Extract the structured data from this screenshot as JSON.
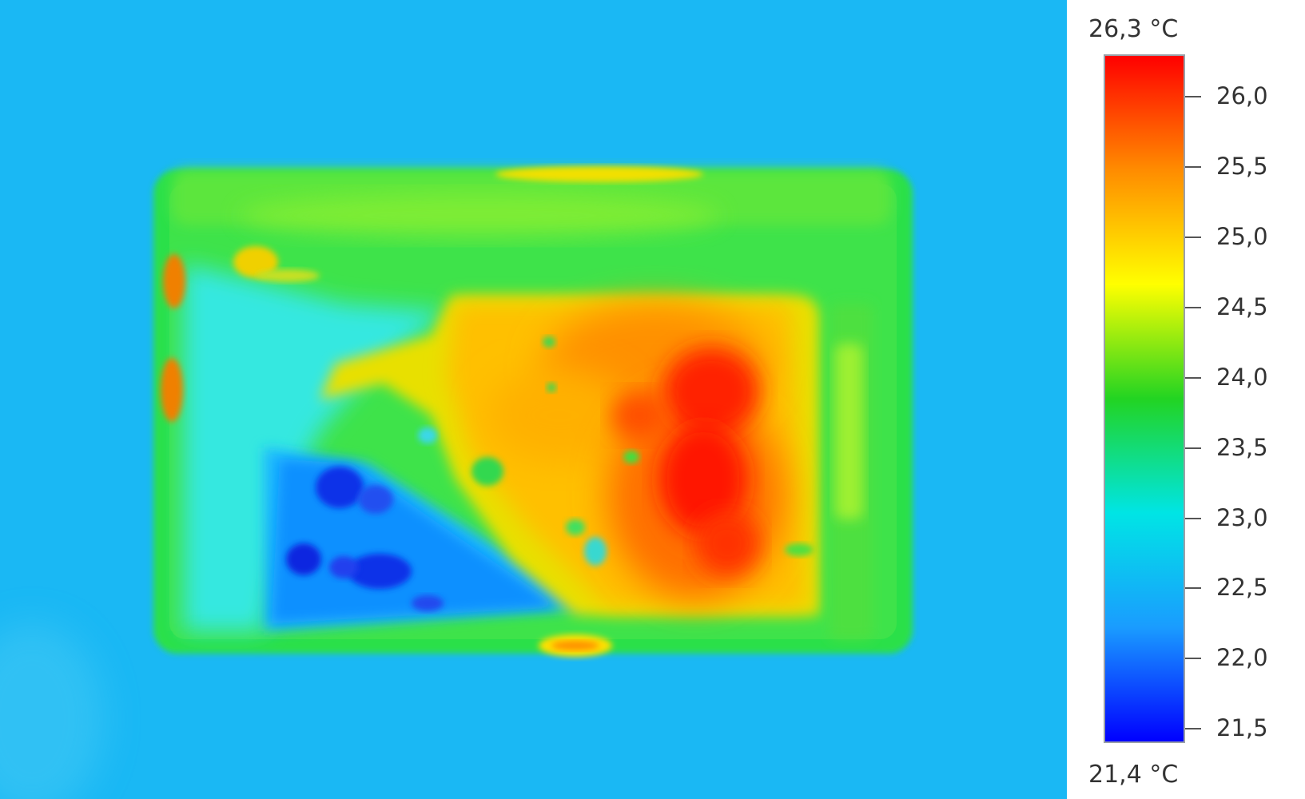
{
  "legend": {
    "max_label": "26,3 °C",
    "min_label": "21,4 °C",
    "ticks": [
      {
        "label": "26,0",
        "value": 26.0
      },
      {
        "label": "25,5",
        "value": 25.5
      },
      {
        "label": "25,0",
        "value": 25.0
      },
      {
        "label": "24,5",
        "value": 24.5
      },
      {
        "label": "24,0",
        "value": 24.0
      },
      {
        "label": "23,5",
        "value": 23.5
      },
      {
        "label": "23,0",
        "value": 23.0
      },
      {
        "label": "22,5",
        "value": 22.5
      },
      {
        "label": "22,0",
        "value": 22.0
      },
      {
        "label": "21,5",
        "value": 21.5
      }
    ],
    "range": [
      21.4,
      26.3
    ]
  },
  "palette": {
    "background": "#1ab8f4",
    "scale_stops": [
      "#ff0000",
      "#ff8c00",
      "#ffff00",
      "#22d422",
      "#00e5e5",
      "#1a9cff",
      "#0000ff"
    ]
  }
}
